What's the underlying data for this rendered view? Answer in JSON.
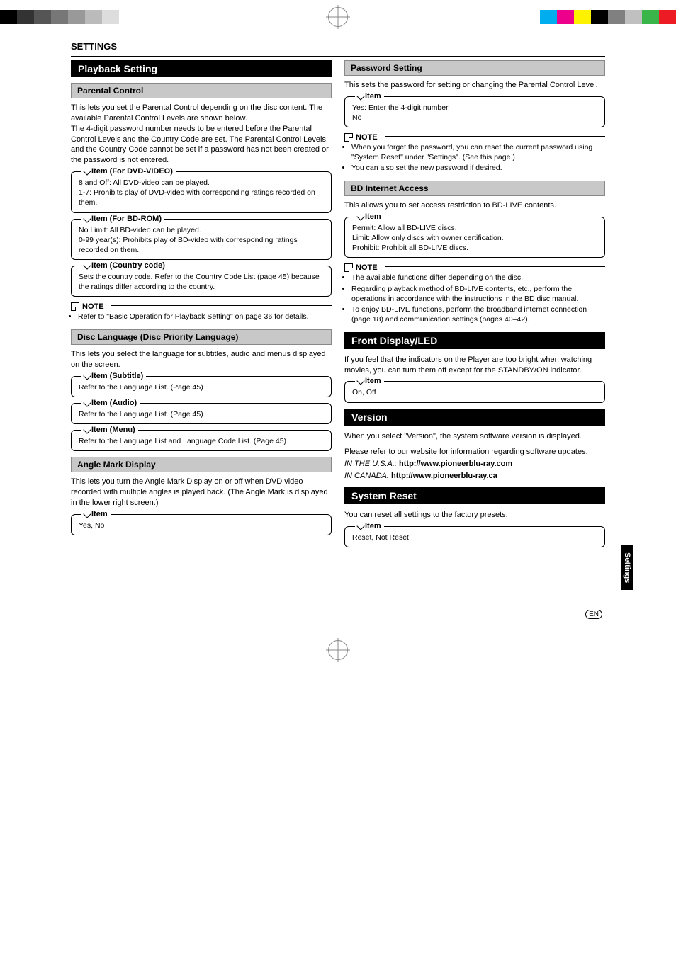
{
  "registration_colors_top": {
    "left": [
      "#000000",
      "#333333",
      "#555555",
      "#777777",
      "#999999",
      "#bbbbbb",
      "#dddddd",
      "#ffffff"
    ],
    "right": [
      "#00aeef",
      "#ec008c",
      "#fff200",
      "#000000",
      "#808080",
      "#c0c0c0",
      "#39b54a",
      "#ed1c24"
    ]
  },
  "header": {
    "title": "SETTINGS"
  },
  "left": {
    "playback_setting": "Playback Setting",
    "parental_control": {
      "title": "Parental Control",
      "text": "This lets you set the Parental Control depending on the disc content. The available Parental Control Levels are shown below.\nThe 4-digit password number needs to be entered before the Parental Control Levels and the Country Code are set. The Parental Control Levels and the Country Code cannot be set if a password has not been created or the password is not entered.",
      "item_dvd": {
        "legend": "Item (For DVD-VIDEO)",
        "body": "8 and Off: All DVD-video can be played.\n1-7: Prohibits play of DVD-video with corresponding ratings recorded on them."
      },
      "item_bd": {
        "legend": "Item (For BD-ROM)",
        "body": "No Limit: All BD-video can be played.\n0-99 year(s): Prohibits play of BD-video with corresponding ratings recorded on them."
      },
      "item_cc": {
        "legend": "Item (Country code)",
        "body": "Sets the country code. Refer to the Country Code List (page 45) because the ratings differ according to the country."
      },
      "note_label": "NOTE",
      "note_items": [
        "Refer to \"Basic Operation for Playback Setting\" on page 36 for details."
      ]
    },
    "disc_lang": {
      "title": "Disc Language (Disc Priority Language)",
      "text": "This lets you select the language for subtitles, audio and menus displayed on the screen.",
      "item_sub": {
        "legend": "Item (Subtitle)",
        "body": "Refer to the Language List. (Page 45)"
      },
      "item_aud": {
        "legend": "Item (Audio)",
        "body": "Refer to the Language List. (Page 45)"
      },
      "item_menu": {
        "legend": "Item (Menu)",
        "body": "Refer to the Language List and Language Code List. (Page 45)"
      }
    },
    "angle": {
      "title": "Angle Mark Display",
      "text": "This lets you turn the Angle Mark Display on or off when DVD video recorded with multiple angles is played back. (The Angle Mark is displayed in the lower right screen.)",
      "item": {
        "legend": "Item",
        "body": "Yes, No"
      }
    }
  },
  "right": {
    "password": {
      "title": "Password Setting",
      "text": "This sets the password for setting or changing the Parental Control Level.",
      "item": {
        "legend": "Item",
        "body": "Yes: Enter the 4-digit number.\nNo"
      },
      "note_label": "NOTE",
      "note_items": [
        "When you forget the password, you can reset the current password using \"System Reset\" under \"Settings\". (See this page.)",
        "You can also set the new password if desired."
      ]
    },
    "bd": {
      "title": "BD Internet Access",
      "text": "This allows you to set access restriction to BD-LIVE contents.",
      "item": {
        "legend": "Item",
        "body": "Permit: Allow all BD-LIVE discs.\nLimit: Allow only discs with owner certification.\nProhibit: Prohibit all BD-LIVE discs."
      },
      "note_label": "NOTE",
      "note_items": [
        "The available functions differ depending on the disc.",
        "Regarding playback method of BD-LIVE contents, etc., perform the operations in accordance with the instructions in the BD disc manual.",
        "To enjoy BD-LIVE functions, perform the broadband internet connection (page 18) and communication settings (pages 40–42)."
      ]
    },
    "front": {
      "title": "Front Display/LED",
      "text": "If you feel that the indicators on the Player are too bright when watching movies, you can turn them off except for the STANDBY/ON indicator.",
      "item": {
        "legend": "Item",
        "body": "On, Off"
      }
    },
    "version": {
      "title": "Version",
      "text1": "When you select \"Version\", the system software version is displayed.",
      "text2": "Please refer to our website for information regarding software updates.",
      "usa_label": "IN THE U.S.A.:",
      "usa_url": "http://www.pioneerblu-ray.com",
      "can_label": "IN CANADA:",
      "can_url": "http://www.pioneerblu-ray.ca"
    },
    "reset": {
      "title": "System Reset",
      "text": "You can reset all settings to the factory presets.",
      "item": {
        "legend": "Item",
        "body": "Reset, Not Reset"
      }
    }
  },
  "side_tab": "Settings",
  "footer": {
    "lang": "EN",
    "page": ""
  }
}
